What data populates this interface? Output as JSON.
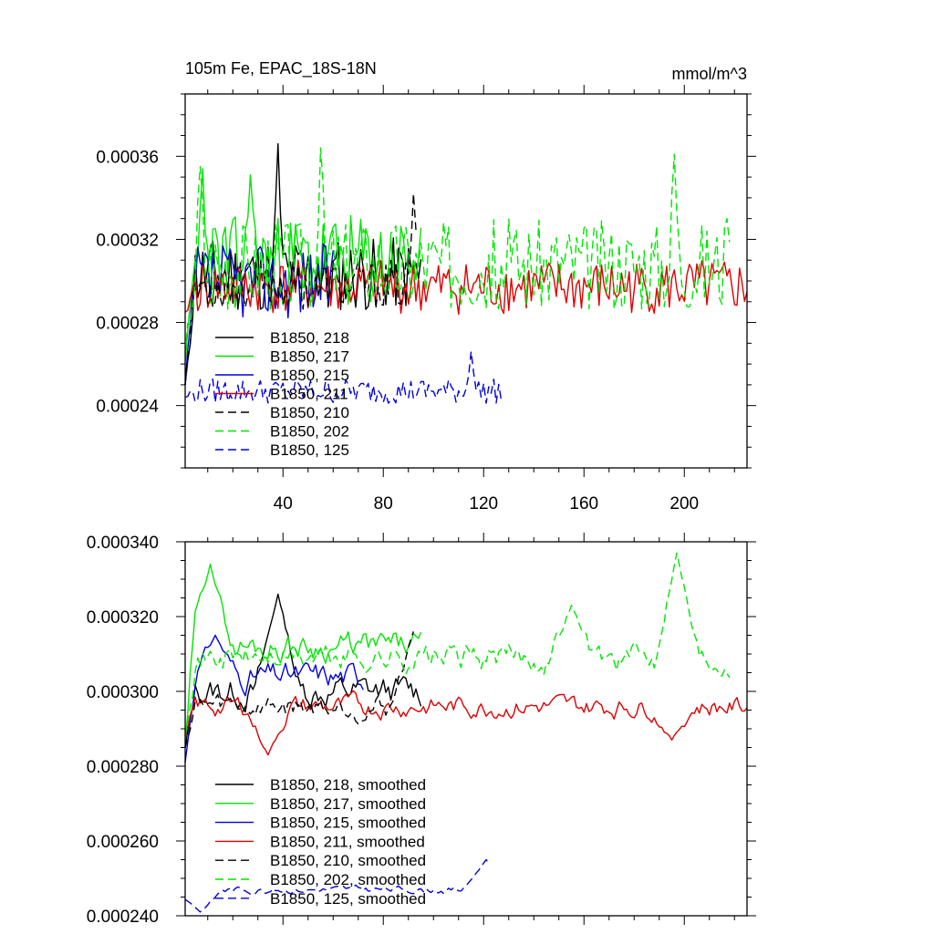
{
  "chart_data": [
    {
      "type": "line",
      "title": "105m Fe, EPAC_18S-18N",
      "units": "mmol/m^3",
      "xlim": [
        1,
        225
      ],
      "ylim": [
        0.00021,
        0.00039
      ],
      "xticks": [
        40,
        80,
        120,
        160,
        200
      ],
      "xtick_labels": [
        "40",
        "80",
        "120",
        "160",
        "200"
      ],
      "yticks": [
        0.00024,
        0.00028,
        0.00032,
        0.00036
      ],
      "ytick_labels": [
        "0.00024",
        "0.00028",
        "0.00032",
        "0.00036"
      ],
      "series": [
        {
          "name": "B1850, 218",
          "color": "#000000",
          "dash": "solid",
          "length": 95,
          "base": 0.000303,
          "amp": 1.8e-05,
          "start": 0.00025,
          "seed": 11,
          "peak": [
            [
              38,
              0.000366
            ]
          ]
        },
        {
          "name": "B1850, 217",
          "color": "#00e600",
          "dash": "solid",
          "length": 95,
          "base": 0.00031,
          "amp": 2.2e-05,
          "start": 0.00026,
          "seed": 23,
          "peak": [
            [
              8,
              0.000354
            ],
            [
              27,
              0.000351
            ]
          ]
        },
        {
          "name": "B1850, 215",
          "color": "#0000dd",
          "dash": "solid",
          "length": 60,
          "base": 0.0003,
          "amp": 1.8e-05,
          "start": 0.00025,
          "seed": 37,
          "peak": []
        },
        {
          "name": "B1850, 211",
          "color": "#dd0000",
          "dash": "solid",
          "length": 225,
          "base": 0.000297,
          "amp": 1.3e-05,
          "start": 0.000285,
          "seed": 41,
          "peak": []
        },
        {
          "name": "B1850, 210",
          "color": "#000000",
          "dash": "dash",
          "length": 93,
          "base": 0.000298,
          "amp": 1.2e-05,
          "start": 0.00025,
          "seed": 53,
          "peak": [
            [
              92,
              0.000342
            ]
          ]
        },
        {
          "name": "B1850, 202",
          "color": "#00e600",
          "dash": "dash",
          "length": 218,
          "base": 0.000308,
          "amp": 2.2e-05,
          "start": 0.000265,
          "seed": 67,
          "peak": [
            [
              7,
              0.000355
            ],
            [
              55,
              0.000364
            ],
            [
              196,
              0.000361
            ]
          ]
        },
        {
          "name": "B1850, 125",
          "color": "#0000dd",
          "dash": "dash",
          "length": 127,
          "base": 0.000247,
          "amp": 6e-06,
          "start": 0.000244,
          "seed": 79,
          "peak": [
            [
              115,
              0.000266
            ]
          ]
        }
      ]
    },
    {
      "type": "line",
      "title": "",
      "xlim": [
        1,
        225
      ],
      "ylim": [
        0.00024,
        0.00034
      ],
      "xticks": [
        40,
        80,
        120,
        160,
        200
      ],
      "yticks": [
        0.00024,
        0.00026,
        0.00028,
        0.0003,
        0.00032,
        0.00034
      ],
      "ytick_labels": [
        "0.000240",
        "0.000260",
        "0.000280",
        "0.000300",
        "0.000320",
        "0.000340"
      ],
      "series": [
        {
          "name": "B1850, 218, smoothed",
          "color": "#000000",
          "dash": "solid",
          "length": 95,
          "base": 0.0003,
          "amp": 9e-06,
          "start": 0.000285,
          "seed": 13,
          "peak": [
            [
              38,
              0.000326
            ]
          ]
        },
        {
          "name": "B1850, 217, smoothed",
          "color": "#00e600",
          "dash": "solid",
          "length": 95,
          "base": 0.000312,
          "amp": 8e-06,
          "start": 0.000287,
          "seed": 29,
          "peak": [
            [
              11,
              0.000334
            ]
          ]
        },
        {
          "name": "B1850, 215, smoothed",
          "color": "#0000dd",
          "dash": "solid",
          "length": 72,
          "base": 0.000304,
          "amp": 8e-06,
          "start": 0.000281,
          "seed": 31,
          "peak": [
            [
              13,
              0.000315
            ]
          ]
        },
        {
          "name": "B1850, 211, smoothed",
          "color": "#dd0000",
          "dash": "solid",
          "length": 225,
          "base": 0.000296,
          "amp": 6e-06,
          "start": 0.000288,
          "seed": 43,
          "peak": [
            [
              34,
              0.000283
            ],
            [
              195,
              0.000287
            ]
          ]
        },
        {
          "name": "B1850, 210, smoothed",
          "color": "#000000",
          "dash": "dash",
          "length": 92,
          "base": 0.000296,
          "amp": 7e-06,
          "start": 0.000285,
          "seed": 59,
          "peak": [
            [
              92,
              0.000316
            ]
          ]
        },
        {
          "name": "B1850, 202, smoothed",
          "color": "#00e600",
          "dash": "dash",
          "length": 218,
          "base": 0.000309,
          "amp": 8e-06,
          "start": 0.000288,
          "seed": 71,
          "peak": [
            [
              197,
              0.000337
            ],
            [
              155,
              0.000323
            ]
          ]
        },
        {
          "name": "B1850, 125, smoothed",
          "color": "#0000dd",
          "dash": "dash",
          "length": 122,
          "base": 0.000247,
          "amp": 2e-06,
          "start": 0.000246,
          "seed": 83,
          "peak": [
            [
              7,
              0.000241
            ],
            [
              121,
              0.000255
            ]
          ]
        }
      ]
    }
  ]
}
